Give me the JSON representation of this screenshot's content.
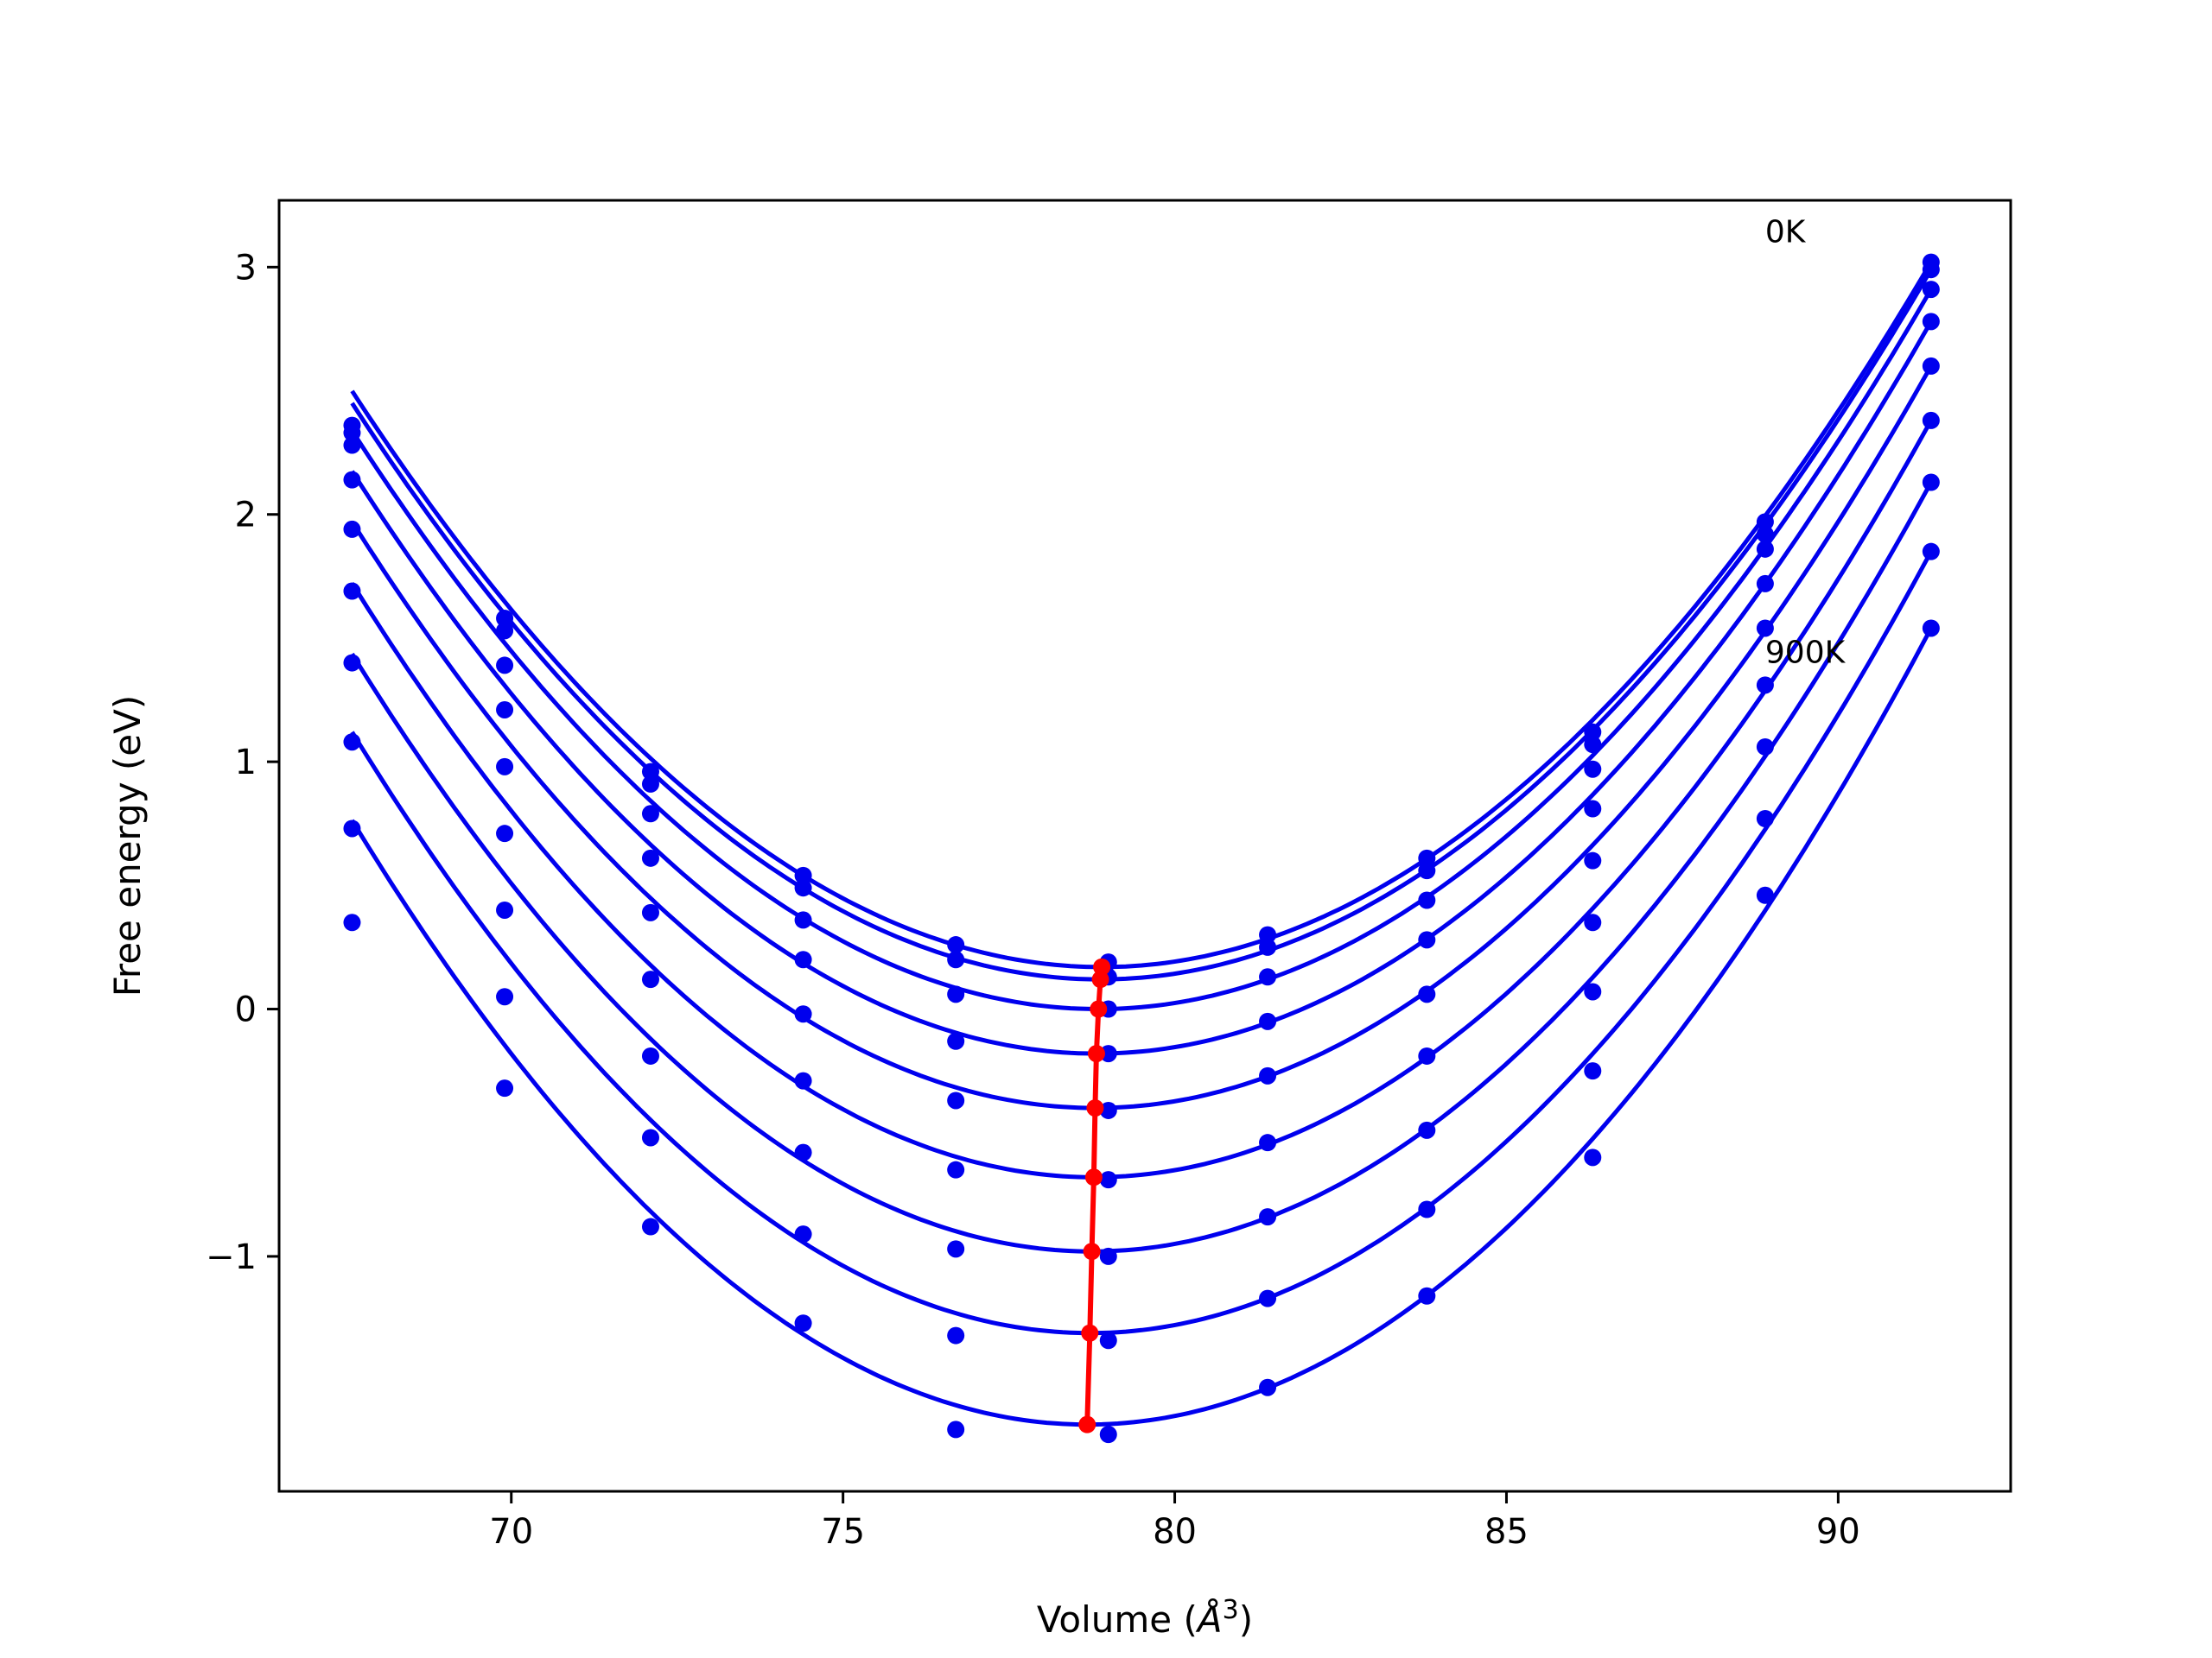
{
  "colors": {
    "curves": "#0000ee",
    "minima": "#ff0000",
    "frame": "#000000"
  },
  "chart_data": {
    "type": "scatter",
    "title": "",
    "xlabel": "Volume (Å³)",
    "xlabel_main": "Volume (",
    "xlabel_unit": "Å",
    "xlabel_exp": "3",
    "xlabel_close": ")",
    "ylabel": "Free energy (eV)",
    "xlim": [
      66.5,
      92.6
    ],
    "ylim": [
      -1.95,
      3.27
    ],
    "xticks": [
      70,
      75,
      80,
      85,
      90
    ],
    "xtick_labels": [
      "70",
      "75",
      "80",
      "85",
      "90"
    ],
    "yticks": [
      -1,
      0,
      1,
      2,
      3
    ],
    "ytick_labels": [
      "−1",
      "0",
      "1",
      "2",
      "3"
    ],
    "grid": false,
    "legend": "none",
    "annotations": [
      {
        "text": "0K",
        "x": 88.9,
        "y": 3.1
      },
      {
        "text": "900K",
        "x": 88.9,
        "y": 1.4
      }
    ],
    "volumes": [
      67.6,
      69.9,
      72.1,
      74.4,
      76.7,
      79.0,
      81.4,
      83.8,
      86.3,
      88.9,
      91.4
    ],
    "series": [
      {
        "label": "0K",
        "fit_min_volume": 78.9,
        "fit_min_energy": 0.17,
        "values": [
          2.36,
          1.58,
          0.96,
          0.54,
          0.26,
          0.19,
          0.3,
          0.61,
          1.12,
          1.97,
          3.02
        ]
      },
      {
        "fit_min_volume": 78.88,
        "fit_min_energy": 0.12,
        "values": [
          2.33,
          1.53,
          0.91,
          0.49,
          0.2,
          0.13,
          0.25,
          0.56,
          1.07,
          1.92,
          2.99
        ]
      },
      {
        "fit_min_volume": 78.85,
        "fit_min_energy": 0.0,
        "values": [
          2.28,
          1.39,
          0.79,
          0.36,
          0.06,
          0.0,
          0.13,
          0.44,
          0.97,
          1.86,
          2.91
        ]
      },
      {
        "fit_min_volume": 78.82,
        "fit_min_energy": -0.18,
        "values": [
          2.14,
          1.21,
          0.61,
          0.2,
          -0.13,
          -0.18,
          -0.05,
          0.28,
          0.81,
          1.72,
          2.78
        ]
      },
      {
        "fit_min_volume": 78.8,
        "fit_min_energy": -0.4,
        "values": [
          1.94,
          0.98,
          0.39,
          -0.02,
          -0.37,
          -0.41,
          -0.27,
          0.06,
          0.6,
          1.54,
          2.6
        ]
      },
      {
        "fit_min_volume": 78.78,
        "fit_min_energy": -0.68,
        "values": [
          1.69,
          0.71,
          0.12,
          -0.29,
          -0.65,
          -0.69,
          -0.54,
          -0.19,
          0.35,
          1.31,
          2.38
        ]
      },
      {
        "fit_min_volume": 78.75,
        "fit_min_energy": -0.98,
        "values": [
          1.4,
          0.4,
          -0.19,
          -0.58,
          -0.97,
          -1.0,
          -0.84,
          -0.49,
          0.07,
          1.06,
          2.13
        ]
      },
      {
        "fit_min_volume": 78.72,
        "fit_min_energy": -1.31,
        "values": [
          1.08,
          0.05,
          -0.52,
          -0.91,
          -1.32,
          -1.34,
          -1.17,
          -0.81,
          -0.25,
          0.77,
          1.85
        ]
      },
      {
        "label": "900K",
        "fit_min_volume": 78.68,
        "fit_min_energy": -1.68,
        "values": [
          0.73,
          -0.32,
          -0.88,
          -1.27,
          -1.7,
          -1.72,
          -1.53,
          -1.16,
          -0.6,
          0.46,
          1.54
        ]
      }
    ],
    "extra_points": [
      {
        "x": 67.6,
        "y": 0.35
      }
    ]
  }
}
